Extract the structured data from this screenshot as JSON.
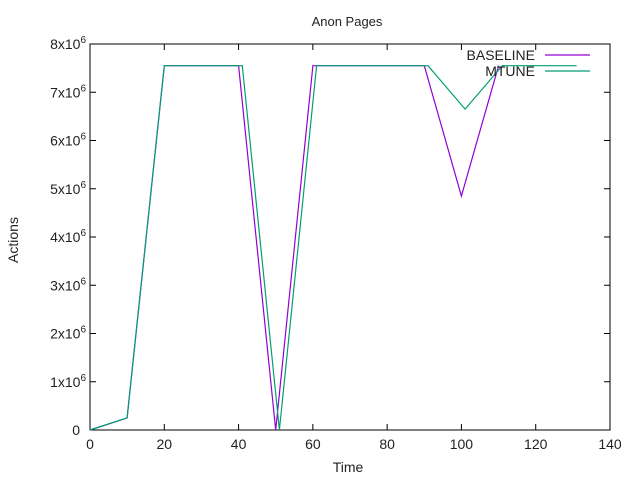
{
  "chart_data": {
    "type": "line",
    "title": "Anon Pages",
    "xlabel": "Time",
    "ylabel": "Actions",
    "xlim": [
      0,
      140
    ],
    "ylim": [
      0,
      8000000
    ],
    "xticks": [
      0,
      20,
      40,
      60,
      80,
      100,
      120,
      140
    ],
    "yticks": [
      {
        "value": 0,
        "base": "0",
        "exp": ""
      },
      {
        "value": 1000000,
        "base": "1x10",
        "exp": "6"
      },
      {
        "value": 2000000,
        "base": "2x10",
        "exp": "6"
      },
      {
        "value": 3000000,
        "base": "3x10",
        "exp": "6"
      },
      {
        "value": 4000000,
        "base": "4x10",
        "exp": "6"
      },
      {
        "value": 5000000,
        "base": "5x10",
        "exp": "6"
      },
      {
        "value": 6000000,
        "base": "6x10",
        "exp": "6"
      },
      {
        "value": 7000000,
        "base": "7x10",
        "exp": "6"
      },
      {
        "value": 8000000,
        "base": "8x10",
        "exp": "6"
      }
    ],
    "grid": false,
    "legend_position": "top-right",
    "series": [
      {
        "name": "BASELINE",
        "color": "#9400d3",
        "x": [
          0,
          10,
          20,
          40,
          50,
          60,
          90,
          100,
          110
        ],
        "y": [
          0,
          250000,
          7550000,
          7550000,
          0,
          7550000,
          7550000,
          4850000,
          7550000
        ]
      },
      {
        "name": "MTUNE",
        "color": "#009e73",
        "x": [
          0,
          10,
          20,
          41,
          51,
          61,
          91,
          101,
          111,
          131
        ],
        "y": [
          0,
          250000,
          7550000,
          7550000,
          0,
          7550000,
          7550000,
          6650000,
          7550000,
          7550000
        ]
      }
    ]
  }
}
